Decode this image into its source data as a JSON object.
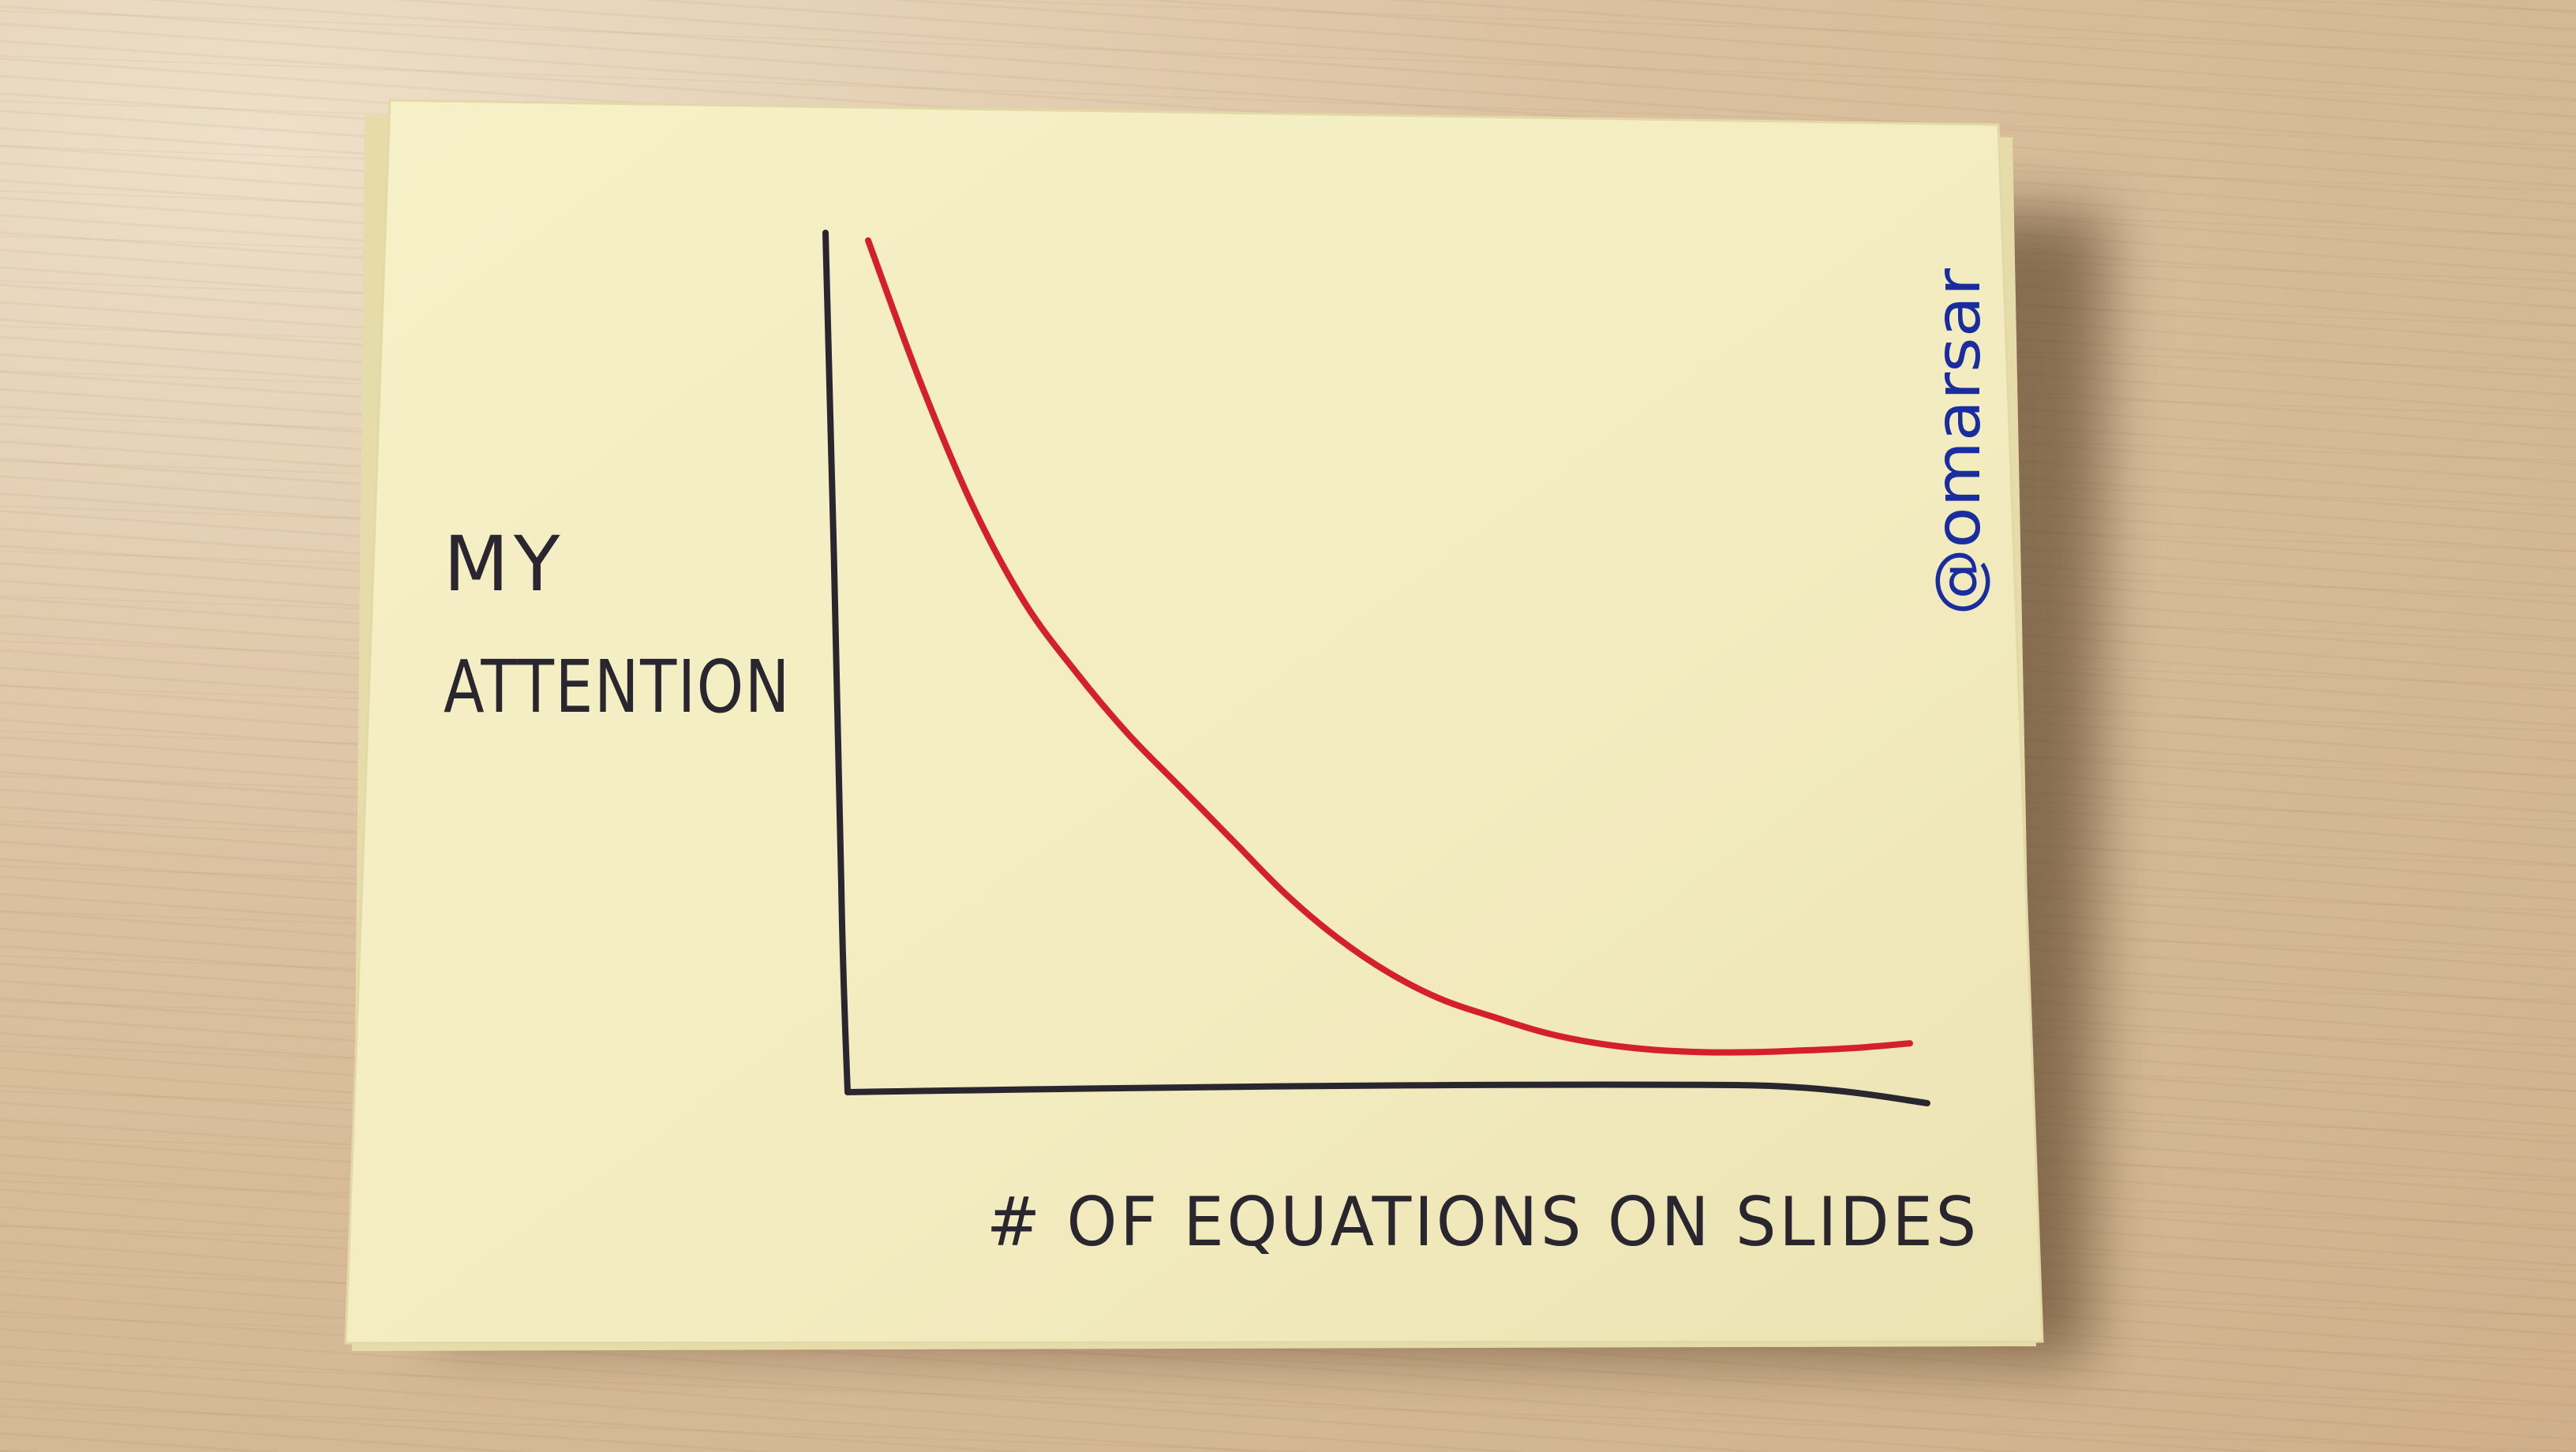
{
  "chart_data": {
    "type": "line",
    "title": "",
    "ylabel_lines": [
      "MY",
      "ATTENTION"
    ],
    "xlabel": "# OF EQUATIONS ON SLIDES",
    "credit": "@omarsar",
    "ticks": "none",
    "grid": false,
    "legend": "none",
    "series": [
      {
        "color": "#d4202c",
        "x": [
          0.0,
          0.25,
          0.5,
          0.75,
          1.0,
          1.25,
          1.5,
          1.75,
          2.0,
          2.25,
          2.5,
          2.75,
          3.0,
          3.25,
          3.5,
          3.75,
          4.0,
          4.25,
          4.5,
          4.75,
          5.0
        ],
        "y": [
          0.96,
          0.8,
          0.66,
          0.55,
          0.47,
          0.4,
          0.34,
          0.28,
          0.22,
          0.17,
          0.13,
          0.1,
          0.08,
          0.062,
          0.05,
          0.043,
          0.04,
          0.04,
          0.042,
          0.045,
          0.05
        ]
      }
    ],
    "xlim": [
      0,
      5
    ],
    "ylim": [
      0,
      1
    ]
  },
  "colors": {
    "ink": "#2a2630",
    "red_ink": "#d4202c",
    "blue_ink": "#1a2d9e",
    "paper": "#f5efc4"
  }
}
